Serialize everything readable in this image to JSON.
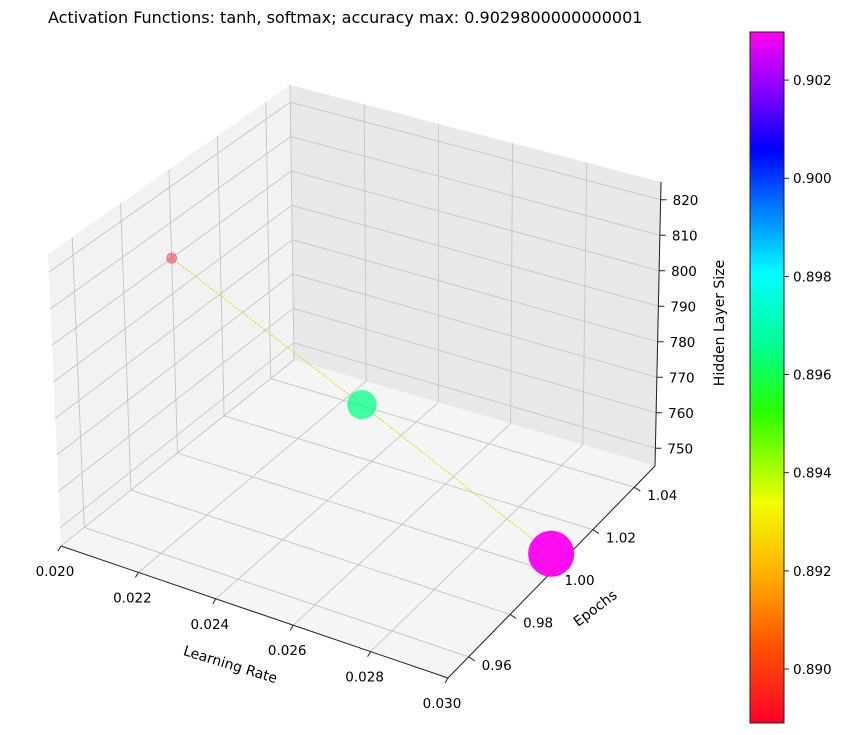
{
  "chart_data": {
    "type": "scatter",
    "projection": "3d",
    "title": "Activation Functions: tanh, softmax; accuracy max: 0.9029800000000001",
    "xlabel": "Learning Rate",
    "ylabel": "Epochs",
    "zlabel": "Hidden Layer Size",
    "xlim": [
      0.02,
      0.03
    ],
    "ylim": [
      0.95,
      1.05
    ],
    "zlim": [
      745,
      825
    ],
    "grid": true,
    "x_ticks": [
      "0.020",
      "0.022",
      "0.024",
      "0.026",
      "0.028",
      "0.030"
    ],
    "y_ticks": [
      "0.96",
      "0.98",
      "1.00",
      "1.02",
      "1.04"
    ],
    "z_ticks": [
      "750",
      "760",
      "770",
      "780",
      "790",
      "800",
      "810",
      "820"
    ],
    "points": [
      {
        "learning_rate": 0.02,
        "epochs": 1,
        "hidden_layer_size": 800,
        "accuracy": 0.8889
      },
      {
        "learning_rate": 0.025,
        "epochs": 1,
        "hidden_layer_size": 775,
        "accuracy": 0.8965
      },
      {
        "learning_rate": 0.03,
        "epochs": 1,
        "hidden_layer_size": 750,
        "accuracy": 0.90298
      }
    ],
    "colorbar": {
      "colormap": "gist_rainbow",
      "range": [
        0.8889,
        0.90298
      ],
      "ticks": [
        "0.890",
        "0.892",
        "0.894",
        "0.896",
        "0.898",
        "0.900",
        "0.902"
      ]
    },
    "line_color": "#c8dc00"
  }
}
